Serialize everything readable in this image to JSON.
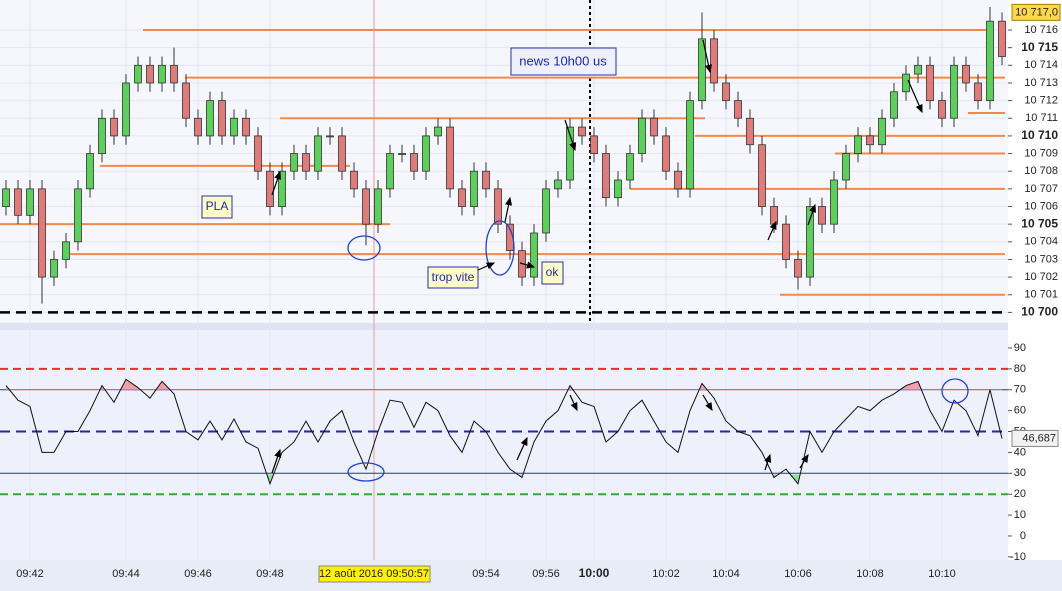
{
  "chart_data": {
    "type": "candlestick",
    "categories": [
      null,
      null,
      "09:42",
      null,
      null,
      null,
      null,
      null,
      null,
      null,
      "09:44",
      null,
      null,
      null,
      null,
      null,
      "09:46",
      null,
      null,
      null,
      null,
      null,
      "09:48",
      null,
      null,
      null,
      null,
      null,
      null,
      null,
      null,
      null,
      null,
      null,
      null,
      null,
      null,
      null,
      null,
      null,
      "09:54",
      null,
      null,
      null,
      null,
      "09:56",
      null,
      null,
      null,
      "10:00",
      null,
      null,
      null,
      null,
      null,
      "10:02",
      null,
      null,
      null,
      null,
      "10:04",
      null,
      null,
      null,
      null,
      null,
      "10:06",
      null,
      null,
      null,
      null,
      null,
      "10:08",
      null,
      null,
      null,
      null,
      null,
      "10:10",
      null,
      null,
      null,
      null,
      null
    ],
    "crosshair_label": "12 août 2016 09:50:57",
    "open": [
      10706,
      10707,
      10705.5,
      10707,
      10702,
      10703,
      10704,
      10707,
      10709,
      10711,
      10710,
      10713,
      10714,
      10713,
      10714,
      10713,
      10711,
      10710,
      10712,
      10710,
      10711,
      10710,
      10708,
      10706,
      10708,
      10709,
      10708,
      10710,
      10710,
      10708,
      10707,
      10705,
      10707,
      10709,
      10709,
      10708,
      10710,
      10710.5,
      10707,
      10706,
      10708,
      10707,
      10705,
      10703.5,
      10702,
      10704.5,
      10707,
      10707.5,
      10710.5,
      10710,
      10709,
      10706.5,
      10707.5,
      10709,
      10711,
      10710,
      10708,
      10707,
      10712,
      10715.5,
      10713,
      10712,
      10711,
      10709.5,
      10706,
      10705,
      10703,
      10702,
      10706,
      10705,
      10707.5,
      10709,
      10710,
      10709.5,
      10711,
      10712.5,
      10713.5,
      10714,
      10712,
      10711,
      10714,
      10713,
      10712,
      10716.5
    ],
    "high": [
      10707.5,
      10707.5,
      10707.5,
      10707.5,
      10703.5,
      10704.5,
      10707.5,
      10709.5,
      10711.5,
      10711.5,
      10713.5,
      10714.5,
      10714.5,
      10714.5,
      10715,
      10713.5,
      10711.5,
      10712.5,
      10712.5,
      10711.5,
      10711.5,
      10710.5,
      10708.5,
      10708.5,
      10709.5,
      10709.5,
      10710.5,
      10710.5,
      10710.5,
      10708.5,
      10707.5,
      10707.5,
      10709.5,
      10709.5,
      10709.5,
      10710.5,
      10711,
      10711,
      10707.5,
      10708.5,
      10708.5,
      10707.5,
      10705.5,
      10704,
      10705,
      10707.5,
      10708,
      10711,
      10711,
      10710.5,
      10709.5,
      10708,
      10709.5,
      10711.5,
      10711.5,
      10710.5,
      10708.5,
      10712.5,
      10717,
      10716,
      10713.5,
      10712.5,
      10711.5,
      10710,
      10706.5,
      10705.5,
      10703.5,
      10706.5,
      10706.5,
      10708,
      10709.5,
      10710.5,
      10710.5,
      10711.5,
      10713,
      10714,
      10714.5,
      10714.5,
      10712.5,
      10714.5,
      10714.5,
      10713.5,
      10717.3,
      10717
    ],
    "low": [
      10705.5,
      10705,
      10705,
      10700.5,
      10701.5,
      10702.5,
      10703.5,
      10706.5,
      10708.5,
      10709.5,
      10709.5,
      10712.5,
      10712.5,
      10712.5,
      10712.5,
      10710.5,
      10709.5,
      10709.5,
      10709.5,
      10709.5,
      10709.5,
      10707.5,
      10705.5,
      10705.5,
      10707.5,
      10707.5,
      10707.5,
      10709.5,
      10707.5,
      10706.5,
      10703.8,
      10704.5,
      10706.5,
      10708.5,
      10707.5,
      10707.5,
      10709.5,
      10706.5,
      10705.5,
      10705.5,
      10706.5,
      10704.5,
      10703,
      10701.5,
      10701.5,
      10704,
      10706.5,
      10707,
      10709.5,
      10708.5,
      10706,
      10706,
      10707,
      10708.5,
      10709.5,
      10707.5,
      10706.5,
      10706.5,
      10711.5,
      10712.5,
      10711.5,
      10710.5,
      10709,
      10705.5,
      10704.5,
      10702.5,
      10701.3,
      10701.5,
      10704.5,
      10704.5,
      10707,
      10708.5,
      10709,
      10709,
      10710.5,
      10712,
      10713,
      10711.5,
      10710.5,
      10710.5,
      10712.5,
      10711.5,
      10711.5,
      10714
    ],
    "close": [
      10707,
      10705.5,
      10707,
      10702,
      10703,
      10704,
      10707,
      10709,
      10711,
      10710,
      10713,
      10714,
      10713,
      10714,
      10713,
      10711,
      10710,
      10712,
      10710,
      10711,
      10710,
      10708,
      10706,
      10708,
      10709,
      10708,
      10710,
      10710,
      10708,
      10707,
      10705,
      10707,
      10709,
      10709,
      10708,
      10710,
      10710.5,
      10707,
      10706,
      10708,
      10707,
      10705,
      10703.5,
      10702,
      10704.5,
      10707,
      10707.5,
      10710.5,
      10710,
      10709,
      10706.5,
      10707.5,
      10709,
      10711,
      10710,
      10708,
      10707,
      10712,
      10715.5,
      10713,
      10712,
      10711,
      10709.5,
      10706,
      10705,
      10703,
      10702,
      10706,
      10705,
      10707.5,
      10709,
      10710,
      10709.5,
      10711,
      10712.5,
      10713.5,
      10714,
      10712,
      10711,
      10714,
      10713,
      10712,
      10716.5,
      10714.5
    ],
    "up_color": "#5ccf5c",
    "down_color": "#e07b7b",
    "ylim": [
      10699.4,
      10717.7
    ],
    "yticks": [
      {
        "value": 10700,
        "label": "10 700"
      },
      {
        "value": 10701,
        "label": "10 701"
      },
      {
        "value": 10702,
        "label": "10 702"
      },
      {
        "value": 10703,
        "label": "10 703"
      },
      {
        "value": 10704,
        "label": "10 704"
      },
      {
        "value": 10705,
        "label": "10 705"
      },
      {
        "value": 10706,
        "label": "10 706"
      },
      {
        "value": 10707,
        "label": "10 707"
      },
      {
        "value": 10708,
        "label": "10 708"
      },
      {
        "value": 10709,
        "label": "10 709"
      },
      {
        "value": 10710,
        "label": "10 710"
      },
      {
        "value": 10711,
        "label": "10 711"
      },
      {
        "value": 10712,
        "label": "10 712"
      },
      {
        "value": 10713,
        "label": "10 713"
      },
      {
        "value": 10714,
        "label": "10 714"
      },
      {
        "value": 10715,
        "label": "10 715"
      },
      {
        "value": 10716,
        "label": "10 716"
      }
    ],
    "price_label": {
      "value": 10717,
      "label": "10 717,0"
    },
    "levels": [
      10716,
      10713.3,
      10711,
      10708.3,
      10705,
      10703.3,
      10710,
      10709,
      10707,
      10711.3,
      10701
    ],
    "level_color": "#f4884a",
    "baseline": 10700,
    "rsi": {
      "values": [
        72,
        65,
        62,
        40,
        40,
        50,
        50,
        60,
        72,
        64,
        75,
        71,
        66,
        74,
        68,
        50,
        46,
        55,
        46,
        56,
        45,
        42,
        25,
        40,
        45,
        55,
        45,
        55,
        60,
        45,
        32,
        50,
        65,
        64,
        52,
        64,
        60,
        48,
        40,
        55,
        50,
        40,
        32,
        28,
        45,
        55,
        60,
        72,
        64,
        62,
        45,
        50,
        60,
        65,
        55,
        45,
        40,
        60,
        73,
        66,
        55,
        50,
        48,
        40,
        28,
        32,
        25,
        50,
        40,
        50,
        56,
        62,
        60,
        65,
        68,
        72,
        74,
        60,
        50,
        65,
        60,
        48,
        70,
        46.687
      ],
      "last_label": "46,687",
      "ylim": [
        -11.5,
        98.6
      ],
      "yticks": [
        90,
        80,
        70,
        60,
        50,
        40,
        30,
        20,
        10,
        0,
        -10
      ],
      "upper": 70,
      "lower": 30,
      "mid": 50,
      "high_band": 80,
      "low_band": 20
    },
    "annotations": [
      "news 10h00 us",
      "PLA",
      "trop vite",
      "ok"
    ]
  }
}
